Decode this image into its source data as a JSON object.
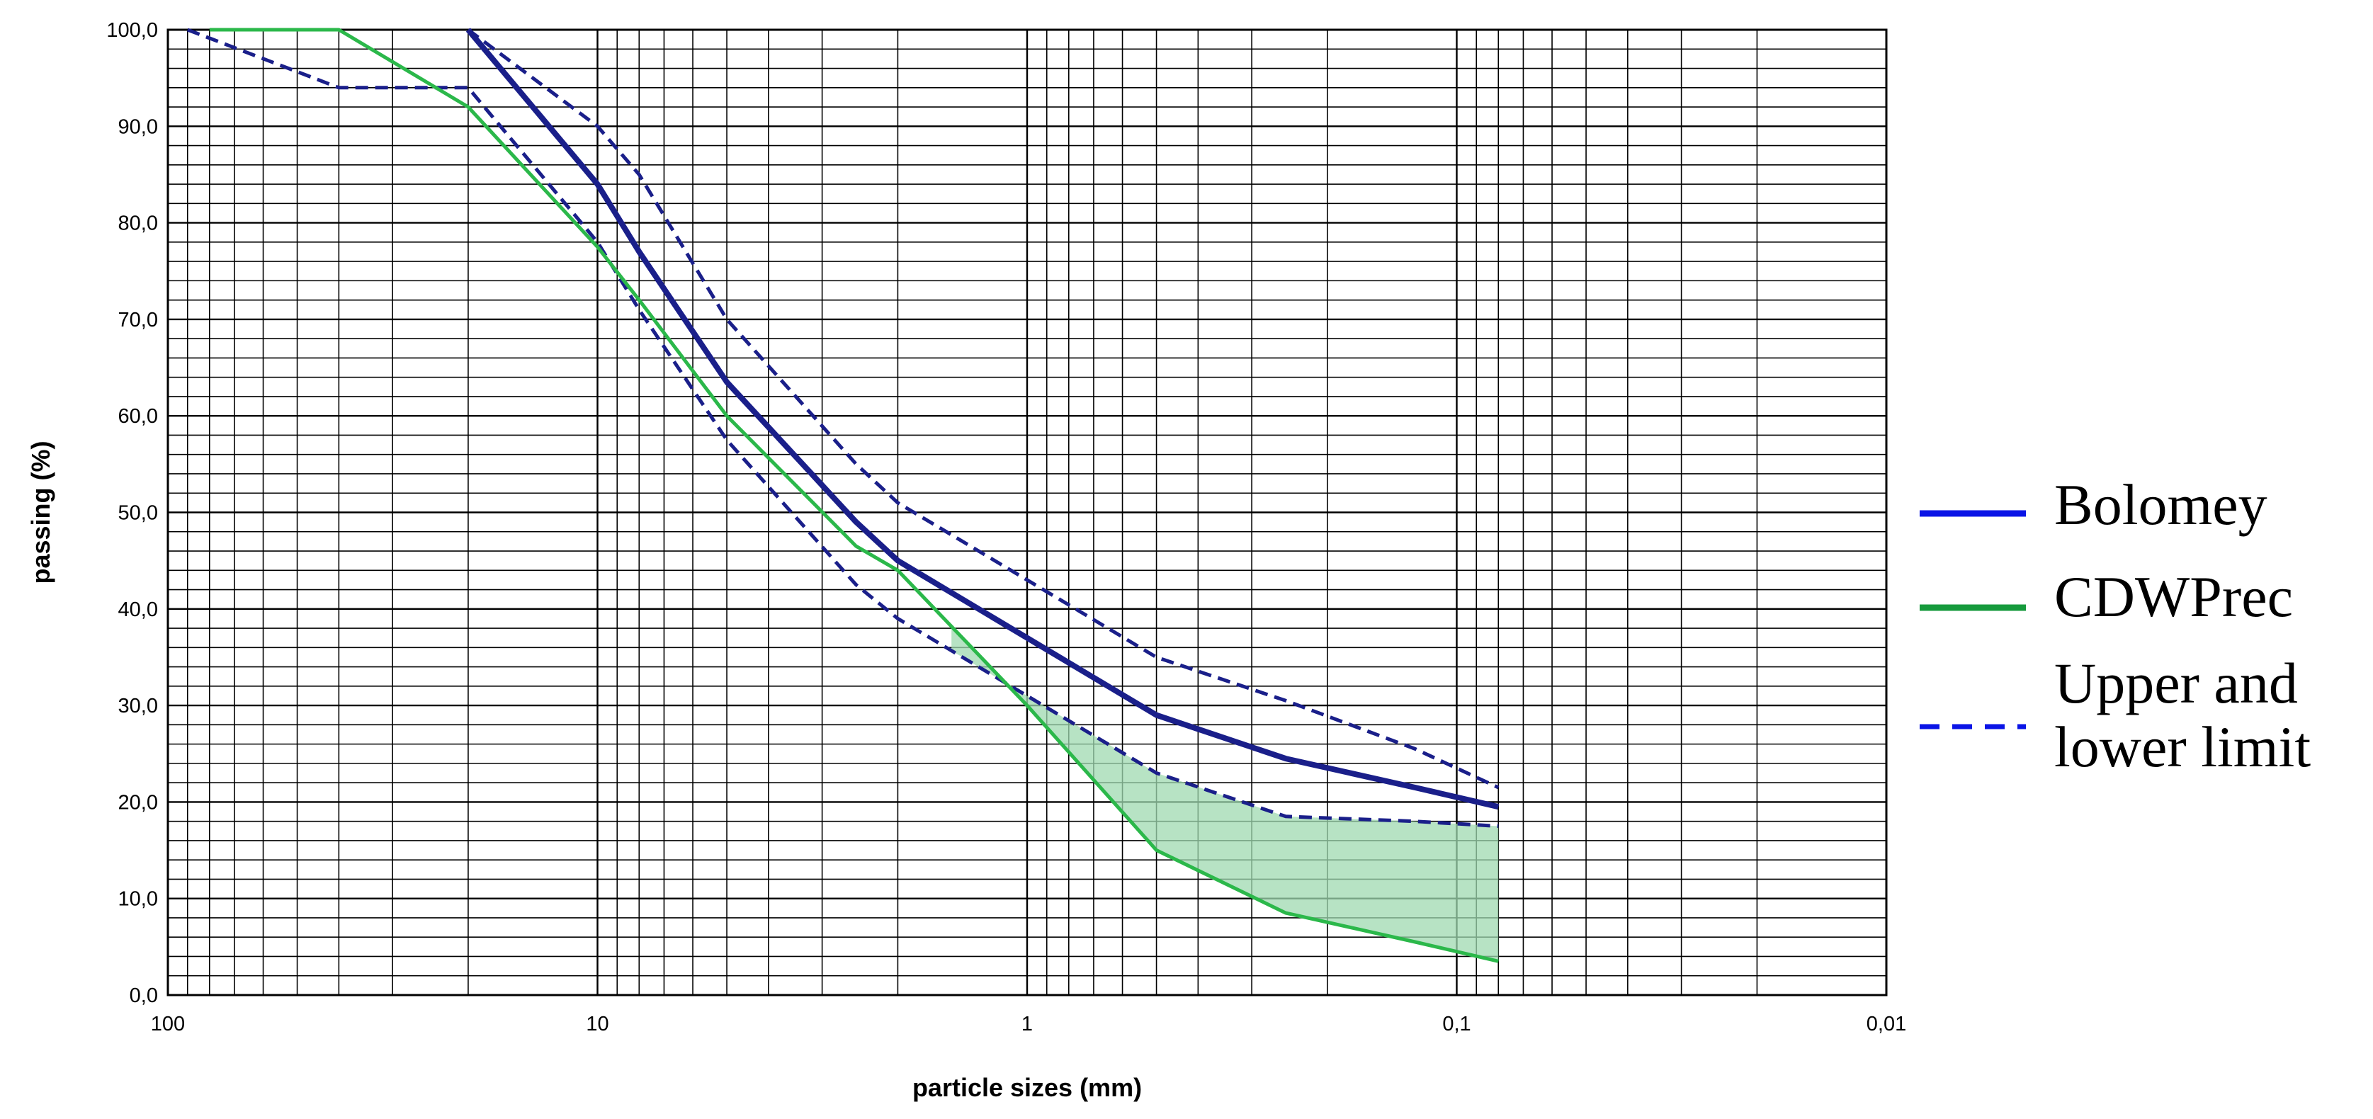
{
  "chart_data": {
    "type": "line",
    "title": "",
    "xlabel": "particle sizes (mm)",
    "ylabel": "passing (%)",
    "x_scale": "log",
    "x_reversed": true,
    "xlim": [
      100,
      0.01
    ],
    "ylim": [
      0,
      100
    ],
    "grid": true,
    "legend_position": "right",
    "x_tick_labels": [
      {
        "value": 100,
        "label": "100"
      },
      {
        "value": 10,
        "label": "10"
      },
      {
        "value": 1,
        "label": "1"
      },
      {
        "value": 0.1,
        "label": "0,1"
      },
      {
        "value": 0.01,
        "label": "0,01"
      }
    ],
    "y_tick_labels": [
      {
        "value": 0,
        "label": "0,0"
      },
      {
        "value": 10,
        "label": "10,0"
      },
      {
        "value": 20,
        "label": "20,0"
      },
      {
        "value": 30,
        "label": "30,0"
      },
      {
        "value": 40,
        "label": "40,0"
      },
      {
        "value": 50,
        "label": "50,0"
      },
      {
        "value": 60,
        "label": "60,0"
      },
      {
        "value": 70,
        "label": "70,0"
      },
      {
        "value": 80,
        "label": "80,0"
      },
      {
        "value": 90,
        "label": "90,0"
      },
      {
        "value": 100,
        "label": "100,0"
      }
    ],
    "series": [
      {
        "name": "Bolomey",
        "color": "#1a1f8a",
        "style": "solid",
        "x": [
          20,
          10,
          8,
          5,
          2.5,
          2,
          1,
          0.5,
          0.25,
          0.125,
          0.08
        ],
        "y": [
          100,
          84,
          77,
          63.5,
          49,
          45,
          37,
          29,
          24.5,
          21.5,
          19.5
        ]
      },
      {
        "name": "CDWPrec",
        "color": "#2bb84a",
        "style": "solid",
        "x": [
          80,
          40,
          20,
          10,
          8,
          5,
          2.5,
          2,
          1,
          0.5,
          0.25,
          0.125,
          0.08
        ],
        "y": [
          100,
          100,
          92,
          77.5,
          72,
          60,
          46.5,
          44,
          30,
          15,
          8.5,
          5.5,
          3.5
        ]
      },
      {
        "name": "Upper limit",
        "color": "#1a1f8a",
        "style": "dashed",
        "x": [
          20,
          10,
          8,
          5,
          2.5,
          2,
          1,
          0.5,
          0.25,
          0.125,
          0.08
        ],
        "y": [
          100,
          90,
          85,
          70,
          55,
          51,
          43,
          35,
          30.5,
          25.5,
          21.5
        ]
      },
      {
        "name": "Lower limit",
        "color": "#1a1f8a",
        "style": "dashed",
        "x": [
          90,
          40,
          20,
          10,
          8,
          5,
          2.5,
          2,
          1,
          0.5,
          0.25,
          0.125,
          0.08
        ],
        "y": [
          100,
          94,
          94,
          78,
          71,
          57.5,
          42.5,
          39,
          31,
          23,
          18.5,
          18,
          17.5
        ]
      }
    ],
    "shaded_region": {
      "description_color": "#9fd9b0",
      "between": [
        "Lower limit",
        "CDWPrec"
      ],
      "x_range": [
        1.5,
        0.08
      ]
    }
  },
  "legend": {
    "items": [
      {
        "label": "Bolomey",
        "color": "#0a14e6",
        "style": "solid"
      },
      {
        "label": "CDWPrec",
        "color": "#169a3c",
        "style": "solid"
      },
      {
        "label": "Upper and lower limit",
        "label_lines": [
          "Upper and",
          "lower limit"
        ],
        "color": "#0a14e6",
        "style": "dashed"
      }
    ]
  }
}
